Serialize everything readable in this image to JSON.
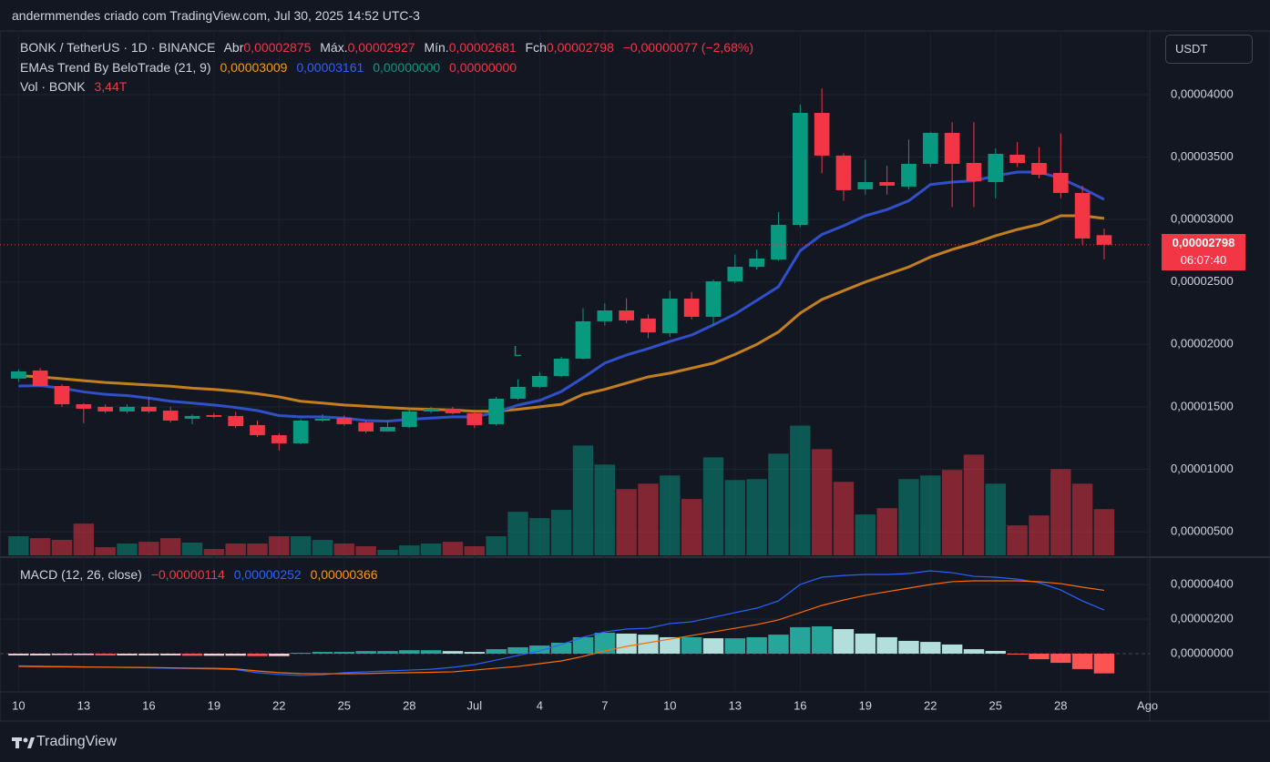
{
  "watermark": "andermmendes criado com TradingView.com, Jul 30, 2025 14:52 UTC-3",
  "currency": "USDT",
  "brand": "TradingView",
  "signal_marker": "L",
  "legend": {
    "symbol": "BONK / TetherUS · 1D · BINANCE",
    "ohlc": [
      {
        "label": "Abr",
        "value": "0,00002875"
      },
      {
        "label": "Máx.",
        "value": "0,00002927"
      },
      {
        "label": "Mín.",
        "value": "0,00002681"
      },
      {
        "label": "Fch",
        "value": "0,00002798"
      }
    ],
    "change": "−0,00000077 (−2,68%)",
    "ema": {
      "name": "EMAs Trend By BeloTrade (21, 9)",
      "values": [
        "0,00003009",
        "0,00003161",
        "0,00000000",
        "0,00000000"
      ]
    },
    "volume": {
      "name": "Vol · BONK",
      "value": "3,44T"
    },
    "macd": {
      "name": "MACD (12, 26, close)",
      "values": [
        "−0,00000114",
        "0,00000252",
        "0,00000366"
      ]
    }
  },
  "price_label": {
    "price": "0,00002798",
    "countdown": "06:07:40"
  },
  "chart_data": [
    {
      "type": "candlestick",
      "categories": [
        "10",
        null,
        null,
        "13",
        null,
        null,
        "16",
        null,
        null,
        "19",
        null,
        null,
        "22",
        null,
        null,
        "25",
        null,
        null,
        "28",
        null,
        null,
        "Jul",
        null,
        null,
        "4",
        null,
        null,
        "7",
        null,
        null,
        "10",
        null,
        null,
        "13",
        null,
        null,
        "16",
        null,
        null,
        "19",
        null,
        null,
        "22",
        null,
        null,
        "25",
        null,
        null,
        "28",
        null,
        null
      ],
      "open": [
        1.726e-05,
        1.791e-05,
        1.667e-05,
        1.521e-05,
        1.5e-05,
        1.463e-05,
        1.5e-05,
        1.47e-05,
        1.405e-05,
        1.434e-05,
        1.427e-05,
        1.354e-05,
        1.273e-05,
        1.208e-05,
        1.39e-05,
        1.412e-05,
        1.375e-05,
        1.303e-05,
        1.339e-05,
        1.463e-05,
        1.485e-05,
        1.449e-05,
        1.361e-05,
        1.565e-05,
        1.66e-05,
        1.747e-05,
        1.886e-05,
        2.185e-05,
        2.272e-05,
        2.207e-05,
        2.09e-05,
        2.367e-05,
        2.221e-05,
        2.505e-05,
        2.622e-05,
        2.68e-05,
        2.957e-05,
        3.854e-05,
        3.512e-05,
        3.242e-05,
        3.3e-05,
        3.264e-05,
        3.446e-05,
        3.694e-05,
        3.453e-05,
        3.3e-05,
        3.519e-05,
        3.453e-05,
        3.373e-05,
        3.213e-05,
        2.875e-05
      ],
      "high": [
        1.8e-05,
        1.81e-05,
        1.68e-05,
        1.53e-05,
        1.52e-05,
        1.52e-05,
        1.58e-05,
        1.5e-05,
        1.44e-05,
        1.45e-05,
        1.46e-05,
        1.39e-05,
        1.29e-05,
        1.4e-05,
        1.44e-05,
        1.43e-05,
        1.39e-05,
        1.39e-05,
        1.48e-05,
        1.5e-05,
        1.5e-05,
        1.46e-05,
        1.58e-05,
        1.72e-05,
        1.78e-05,
        1.9e-05,
        2.29e-05,
        2.33e-05,
        2.37e-05,
        2.24e-05,
        2.43e-05,
        2.42e-05,
        2.52e-05,
        2.72e-05,
        2.76e-05,
        3.06e-05,
        3.92e-05,
        4.05e-05,
        3.53e-05,
        3.48e-05,
        3.43e-05,
        3.64e-05,
        3.7e-05,
        3.78e-05,
        3.78e-05,
        3.57e-05,
        3.62e-05,
        3.58e-05,
        3.69e-05,
        3.27e-05,
        2.927e-05
      ],
      "low": [
        1.7e-05,
        1.66e-05,
        1.5e-05,
        1.37e-05,
        1.45e-05,
        1.45e-05,
        1.45e-05,
        1.375e-05,
        1.36e-05,
        1.41e-05,
        1.33e-05,
        1.26e-05,
        1.15e-05,
        1.2e-05,
        1.38e-05,
        1.35e-05,
        1.29e-05,
        1.3e-05,
        1.33e-05,
        1.45e-05,
        1.44e-05,
        1.33e-05,
        1.35e-05,
        1.555e-05,
        1.65e-05,
        1.74e-05,
        1.88e-05,
        2.15e-05,
        2.17e-05,
        2.05e-05,
        2.06e-05,
        2.2e-05,
        2.15e-05,
        2.49e-05,
        2.6e-05,
        2.67e-05,
        2.94e-05,
        3.37e-05,
        3.15e-05,
        3.2e-05,
        3.2e-05,
        3.24e-05,
        3.42e-05,
        3.1e-05,
        3.1e-05,
        3.17e-05,
        3.42e-05,
        3.33e-05,
        3.17e-05,
        2.8e-05,
        2.681e-05
      ],
      "close": [
        1.784e-05,
        1.667e-05,
        1.521e-05,
        1.485e-05,
        1.463e-05,
        1.5e-05,
        1.463e-05,
        1.39e-05,
        1.427e-05,
        1.42e-05,
        1.346e-05,
        1.273e-05,
        1.208e-05,
        1.39e-05,
        1.405e-05,
        1.361e-05,
        1.303e-05,
        1.339e-05,
        1.463e-05,
        1.485e-05,
        1.449e-05,
        1.354e-05,
        1.565e-05,
        1.66e-05,
        1.747e-05,
        1.886e-05,
        2.185e-05,
        2.272e-05,
        2.192e-05,
        2.097e-05,
        2.367e-05,
        2.221e-05,
        2.505e-05,
        2.622e-05,
        2.688e-05,
        2.957e-05,
        3.854e-05,
        3.512e-05,
        3.235e-05,
        3.3e-05,
        3.271e-05,
        3.446e-05,
        3.694e-05,
        3.446e-05,
        3.307e-05,
        3.526e-05,
        3.453e-05,
        3.358e-05,
        3.213e-05,
        2.848e-05,
        2.798e-05
      ],
      "up_color": "#089981",
      "down_color": "#f23645",
      "lines": [
        {
          "color": "#c47f1d",
          "values": [
            1.75e-05,
            1.74e-05,
            1.725e-05,
            1.71e-05,
            1.695e-05,
            1.685e-05,
            1.675e-05,
            1.665e-05,
            1.65e-05,
            1.64e-05,
            1.625e-05,
            1.605e-05,
            1.58e-05,
            1.545e-05,
            1.53e-05,
            1.515e-05,
            1.505e-05,
            1.495e-05,
            1.485e-05,
            1.48e-05,
            1.475e-05,
            1.465e-05,
            1.465e-05,
            1.48e-05,
            1.5e-05,
            1.52e-05,
            1.6e-05,
            1.64e-05,
            1.69e-05,
            1.74e-05,
            1.77e-05,
            1.81e-05,
            1.85e-05,
            1.92e-05,
            2e-05,
            2.1e-05,
            2.25e-05,
            2.36e-05,
            2.43e-05,
            2.5e-05,
            2.56e-05,
            2.62e-05,
            2.7e-05,
            2.76e-05,
            2.81e-05,
            2.87e-05,
            2.92e-05,
            2.96e-05,
            3.03e-05,
            3.03e-05,
            3.009e-05
          ]
        },
        {
          "color": "#2f50c8",
          "values": [
            1.667e-05,
            1.67e-05,
            1.65e-05,
            1.62e-05,
            1.6e-05,
            1.59e-05,
            1.57e-05,
            1.545e-05,
            1.53e-05,
            1.515e-05,
            1.495e-05,
            1.47e-05,
            1.43e-05,
            1.42e-05,
            1.42e-05,
            1.41e-05,
            1.39e-05,
            1.385e-05,
            1.4e-05,
            1.41e-05,
            1.42e-05,
            1.42e-05,
            1.456e-05,
            1.514e-05,
            1.551e-05,
            1.623e-05,
            1.733e-05,
            1.85e-05,
            1.915e-05,
            1.966e-05,
            2.024e-05,
            2.075e-05,
            2.156e-05,
            2.243e-05,
            2.352e-05,
            2.462e-05,
            2.75e-05,
            2.88e-05,
            2.95e-05,
            3.03e-05,
            3.08e-05,
            3.15e-05,
            3.28e-05,
            3.3e-05,
            3.31e-05,
            3.35e-05,
            3.38e-05,
            3.38e-05,
            3.33e-05,
            3.25e-05,
            3.161e-05
          ]
        }
      ],
      "ylim": [
        3.11e-06,
        4.51e-05
      ],
      "yticks": [
        {
          "value": 5e-06,
          "label": "0,00000500"
        },
        {
          "value": 1e-05,
          "label": "0,00001000"
        },
        {
          "value": 1.5e-05,
          "label": "0,00001500"
        },
        {
          "value": 2e-05,
          "label": "0,00002000"
        },
        {
          "value": 2.5e-05,
          "label": "0,00002500"
        },
        {
          "value": 3e-05,
          "label": "0,00003000"
        },
        {
          "value": 3.5e-05,
          "label": "0,00003500"
        },
        {
          "value": 4e-05,
          "label": "0,00004000"
        }
      ],
      "xlim": [
        -0.35,
        52.1
      ],
      "xticks": [
        {
          "value": 52,
          "label": "Ago"
        }
      ],
      "grid": true
    },
    {
      "type": "volume",
      "values": [
        1.42,
        1.28,
        1.15,
        2.36,
        0.61,
        0.88,
        1.01,
        1.28,
        0.95,
        0.47,
        0.88,
        0.88,
        1.42,
        1.42,
        1.15,
        0.88,
        0.68,
        0.41,
        0.74,
        0.88,
        1.01,
        0.68,
        1.42,
        3.24,
        2.77,
        3.38,
        8.17,
        6.75,
        4.93,
        5.33,
        5.94,
        4.19,
        7.29,
        5.6,
        5.67,
        7.56,
        9.65,
        7.9,
        5.47,
        3.04,
        3.51,
        5.67,
        5.94,
        6.35,
        7.49,
        5.33,
        2.23,
        2.97,
        6.41,
        5.33,
        3.44
      ],
      "up_color": "rgba(8,153,129,0.5)",
      "down_color": "rgba(242,54,69,0.5)",
      "ylim": [
        0,
        39
      ]
    },
    {
      "type": "macd",
      "histogram": [
        -1e-07,
        -1e-07,
        -8e-08,
        -8e-08,
        -1e-07,
        -1e-07,
        -1e-07,
        -1e-07,
        -1.2e-07,
        -1.2e-07,
        -1.2e-07,
        -1.4e-07,
        -1.4e-07,
        5e-08,
        1e-07,
        1e-07,
        1.5e-07,
        1.5e-07,
        2e-07,
        2e-07,
        1.5e-07,
        1e-07,
        2.6e-07,
        3.7e-07,
        4.7e-07,
        6.3e-07,
        9.5e-07,
        1.21e-06,
        1.16e-06,
        1.1e-06,
        9.5e-07,
        9.5e-07,
        8.9e-07,
        8.9e-07,
        9.5e-07,
        1.1e-06,
        1.53e-06,
        1.58e-06,
        1.42e-06,
        1.16e-06,
        9.5e-07,
        7.4e-07,
        6.8e-07,
        5.3e-07,
        2.6e-07,
        1.6e-07,
        -5e-08,
        -3.2e-07,
        -5.3e-07,
        -8.9e-07,
        -1.14e-06
      ],
      "histogram_colors": [
        "#26a69a",
        "#b2dfdb",
        "#ffcdd2",
        "#ff5252"
      ],
      "series": [
        {
          "color": "#2962ff",
          "values": [
            -7e-07,
            -7.2e-07,
            -7.4e-07,
            -7.6e-07,
            -7.8e-07,
            -8e-07,
            -8.2e-07,
            -8.4e-07,
            -8.6e-07,
            -8.8e-07,
            -9.2e-07,
            -1.1e-06,
            -1.2e-06,
            -1.26e-06,
            -1.22e-06,
            -1.1e-06,
            -1.05e-06,
            -1e-06,
            -9.5e-07,
            -9e-07,
            -7.9e-07,
            -6.3e-07,
            -3.7e-07,
            -1e-07,
            1.6e-07,
            5.3e-07,
            9.5e-07,
            1.26e-06,
            1.42e-06,
            1.47e-06,
            1.74e-06,
            1.84e-06,
            2.1e-06,
            2.37e-06,
            2.63e-06,
            3.05e-06,
            4e-06,
            4.42e-06,
            4.52e-06,
            4.58e-06,
            4.58e-06,
            4.63e-06,
            4.79e-06,
            4.68e-06,
            4.47e-06,
            4.42e-06,
            4.31e-06,
            4.1e-06,
            3.68e-06,
            3.05e-06,
            2.52e-06
          ]
        },
        {
          "color": "#ff6d00",
          "values": [
            -7.4e-07,
            -7.5e-07,
            -7.6e-07,
            -7.7e-07,
            -7.8e-07,
            -7.9e-07,
            -8e-07,
            -8.2e-07,
            -8.4e-07,
            -8.5e-07,
            -8.8e-07,
            -1e-06,
            -1.1e-06,
            -1.15e-06,
            -1.16e-06,
            -1.16e-06,
            -1.15e-06,
            -1.12e-06,
            -1.1e-06,
            -1.08e-06,
            -1.05e-06,
            -9.5e-07,
            -8.4e-07,
            -7.4e-07,
            -5.8e-07,
            -4.2e-07,
            -1.6e-07,
            1.6e-07,
            4.2e-07,
            6.3e-07,
            8.4e-07,
            1.05e-06,
            1.26e-06,
            1.47e-06,
            1.68e-06,
            1.95e-06,
            2.37e-06,
            2.79e-06,
            3.1e-06,
            3.37e-06,
            3.58e-06,
            3.79e-06,
            4e-06,
            4.16e-06,
            4.21e-06,
            4.21e-06,
            4.21e-06,
            4.16e-06,
            4.05e-06,
            3.84e-06,
            3.66e-06
          ]
        }
      ],
      "ylim": [
        -2.21e-06,
        5.42e-06
      ],
      "yticks": [
        {
          "value": 0,
          "label": "0,00000000"
        },
        {
          "value": 2e-06,
          "label": "0,00000200"
        },
        {
          "value": 4e-06,
          "label": "0,00000400"
        }
      ],
      "grid": true
    }
  ]
}
